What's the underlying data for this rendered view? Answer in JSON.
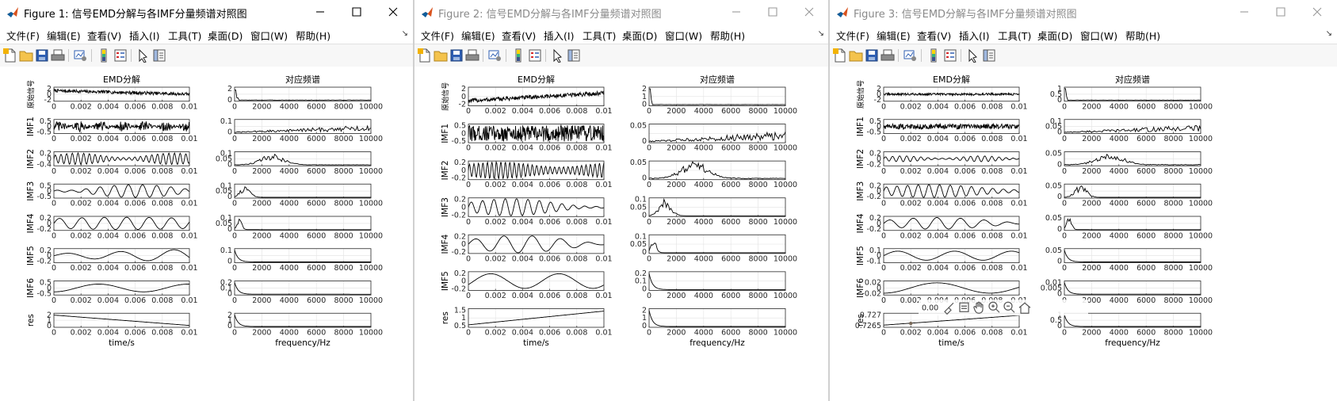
{
  "windows": [
    {
      "id": "figure-1",
      "title": "Figure 1: 信号EMD分解与各IMF分量频谱对照图",
      "active": true,
      "menu": [
        "文件(F)",
        "编辑(E)",
        "查看(V)",
        "插入(I)",
        "工具(T)",
        "桌面(D)",
        "窗口(W)",
        "帮助(H)"
      ],
      "left_title": "EMD分解",
      "right_title": "对应频谱",
      "x_label_left": "time/s",
      "x_label_right": "frequency/Hz",
      "time_ticks": [
        "0",
        "0.002",
        "0.004",
        "0.006",
        "0.008",
        "0.01"
      ],
      "freq_ticks": [
        "0",
        "2000",
        "4000",
        "6000",
        "8000",
        "10000"
      ],
      "rows": [
        {
          "label": "原始信号",
          "yticks": [
            "2",
            "0",
            "-2"
          ],
          "ftick": [
            "2",
            "0"
          ]
        },
        {
          "label": "IMF1",
          "yticks": [
            "0.5",
            "0",
            "-0.5"
          ],
          "ftick": [
            "0.1",
            "0"
          ]
        },
        {
          "label": "IMF2",
          "yticks": [
            "0.2",
            "0",
            "-0.4"
          ],
          "ftick": [
            "0.1",
            "0.05",
            "0"
          ]
        },
        {
          "label": "IMF3",
          "yticks": [
            "0.5",
            "0",
            "-0.5"
          ],
          "ftick": [
            "0.1",
            "0.05",
            "0"
          ]
        },
        {
          "label": "IMF4",
          "yticks": [
            "0.2",
            "0",
            "-0.2"
          ],
          "ftick": [
            "0.1",
            "0.05",
            "0"
          ]
        },
        {
          "label": "IMF5",
          "yticks": [
            "0.2",
            "0",
            "-0.2"
          ],
          "ftick": [
            "0.1",
            "0"
          ]
        },
        {
          "label": "IMF6",
          "yticks": [
            "0.5",
            "0",
            "-0.5"
          ],
          "ftick": [
            "0.2",
            "0.1",
            "0"
          ]
        },
        {
          "label": "res",
          "yticks": [
            "2",
            "1",
            "0"
          ],
          "ftick": [
            "2",
            "1",
            "0"
          ]
        }
      ]
    },
    {
      "id": "figure-2",
      "title": "Figure 2: 信号EMD分解与各IMF分量频谱对照图",
      "active": false,
      "menu": [
        "文件(F)",
        "编辑(E)",
        "查看(V)",
        "插入(I)",
        "工具(T)",
        "桌面(D)",
        "窗口(W)",
        "帮助(H)"
      ],
      "left_title": "EMD分解",
      "right_title": "对应频谱",
      "x_label_left": "time/s",
      "x_label_right": "frequency/Hz",
      "time_ticks": [
        "0",
        "0.002",
        "0.004",
        "0.006",
        "0.008",
        "0.01"
      ],
      "freq_ticks": [
        "0",
        "2000",
        "4000",
        "6000",
        "8000",
        "10000"
      ],
      "rows": [
        {
          "label": "原始信号",
          "yticks": [
            "2",
            "0",
            "-2"
          ],
          "ftick": [
            "2",
            "1",
            "0"
          ]
        },
        {
          "label": "IMF1",
          "yticks": [
            "0.5",
            "0",
            "-0.5"
          ],
          "ftick": [
            "0.05",
            "0"
          ]
        },
        {
          "label": "IMF2",
          "yticks": [
            "0.2",
            "0",
            "-0.2"
          ],
          "ftick": [
            "0.05",
            "0"
          ]
        },
        {
          "label": "IMF3",
          "yticks": [
            "0.2",
            "0",
            "-0.2"
          ],
          "ftick": [
            "0.1",
            "0.05",
            "0"
          ]
        },
        {
          "label": "IMF4",
          "yticks": [
            "0.2",
            "0",
            "-0.2"
          ],
          "ftick": [
            "0.1",
            "0.05",
            "0"
          ]
        },
        {
          "label": "IMF5",
          "yticks": [
            "0.2",
            "0",
            "-0.2"
          ],
          "ftick": [
            "0.2",
            "0.1",
            "0"
          ]
        },
        {
          "label": "res",
          "yticks": [
            "1.5",
            "1",
            "0.5"
          ],
          "ftick": [
            "2",
            "1",
            "0"
          ]
        }
      ]
    },
    {
      "id": "figure-3",
      "title": "Figure 3: 信号EMD分解与各IMF分量频谱对照图",
      "active": false,
      "menu": [
        "文件(F)",
        "编辑(E)",
        "查看(V)",
        "插入(I)",
        "工具(T)",
        "桌面(D)",
        "窗口(W)",
        "帮助(H)"
      ],
      "left_title": "EMD分解",
      "right_title": "对应频谱",
      "x_label_left": "time/s",
      "x_label_right": "frequency/Hz",
      "time_ticks": [
        "0",
        "0.002",
        "0.004",
        "0.006",
        "0.008",
        "0.01"
      ],
      "freq_ticks": [
        "0",
        "2000",
        "4000",
        "6000",
        "8000",
        "10000"
      ],
      "rows": [
        {
          "label": "原始信号",
          "yticks": [
            "2",
            "0",
            "-2"
          ],
          "ftick": [
            "1",
            "0.5",
            "0"
          ]
        },
        {
          "label": "IMF1",
          "yticks": [
            "0.5",
            "0",
            "-0.5"
          ],
          "ftick": [
            "0.1",
            "0.05",
            "0"
          ]
        },
        {
          "label": "IMF2",
          "yticks": [
            "0.2",
            "0",
            "-0.2"
          ],
          "ftick": [
            "0.05",
            "0"
          ]
        },
        {
          "label": "IMF3",
          "yticks": [
            "0.2",
            "0",
            "-0.2"
          ],
          "ftick": [
            "0.05",
            "0"
          ]
        },
        {
          "label": "IMF4",
          "yticks": [
            "0.2",
            "0",
            "-0.2"
          ],
          "ftick": [
            "0.05",
            "0"
          ]
        },
        {
          "label": "IMF5",
          "yticks": [
            "0.1",
            "0",
            "-0.1"
          ],
          "ftick": [
            "0.05",
            "0"
          ]
        },
        {
          "label": "IMF6",
          "yticks": [
            "0.02",
            "0",
            "-0.02"
          ],
          "ftick": [
            "0.01",
            "0.005",
            "0"
          ]
        },
        {
          "label": "res",
          "yticks": [
            "0.727",
            "0.7265"
          ],
          "ftick": [
            "1",
            "0.5",
            "0"
          ]
        }
      ],
      "overlay_readout": "0.00"
    }
  ],
  "colors": {
    "accent": "#0072bd",
    "line": "#000000",
    "grid": "#e6e6e6"
  },
  "icons": [
    "matlab-logo-icon",
    "new-figure-icon",
    "open-file-icon",
    "save-icon",
    "print-icon",
    "link-plot-icon",
    "colorbar-icon",
    "legend-icon",
    "edit-plot-icon",
    "property-inspector-icon",
    "brush-icon",
    "data-tips-icon",
    "pan-icon",
    "zoom-in-icon",
    "zoom-out-icon",
    "restore-view-icon"
  ]
}
